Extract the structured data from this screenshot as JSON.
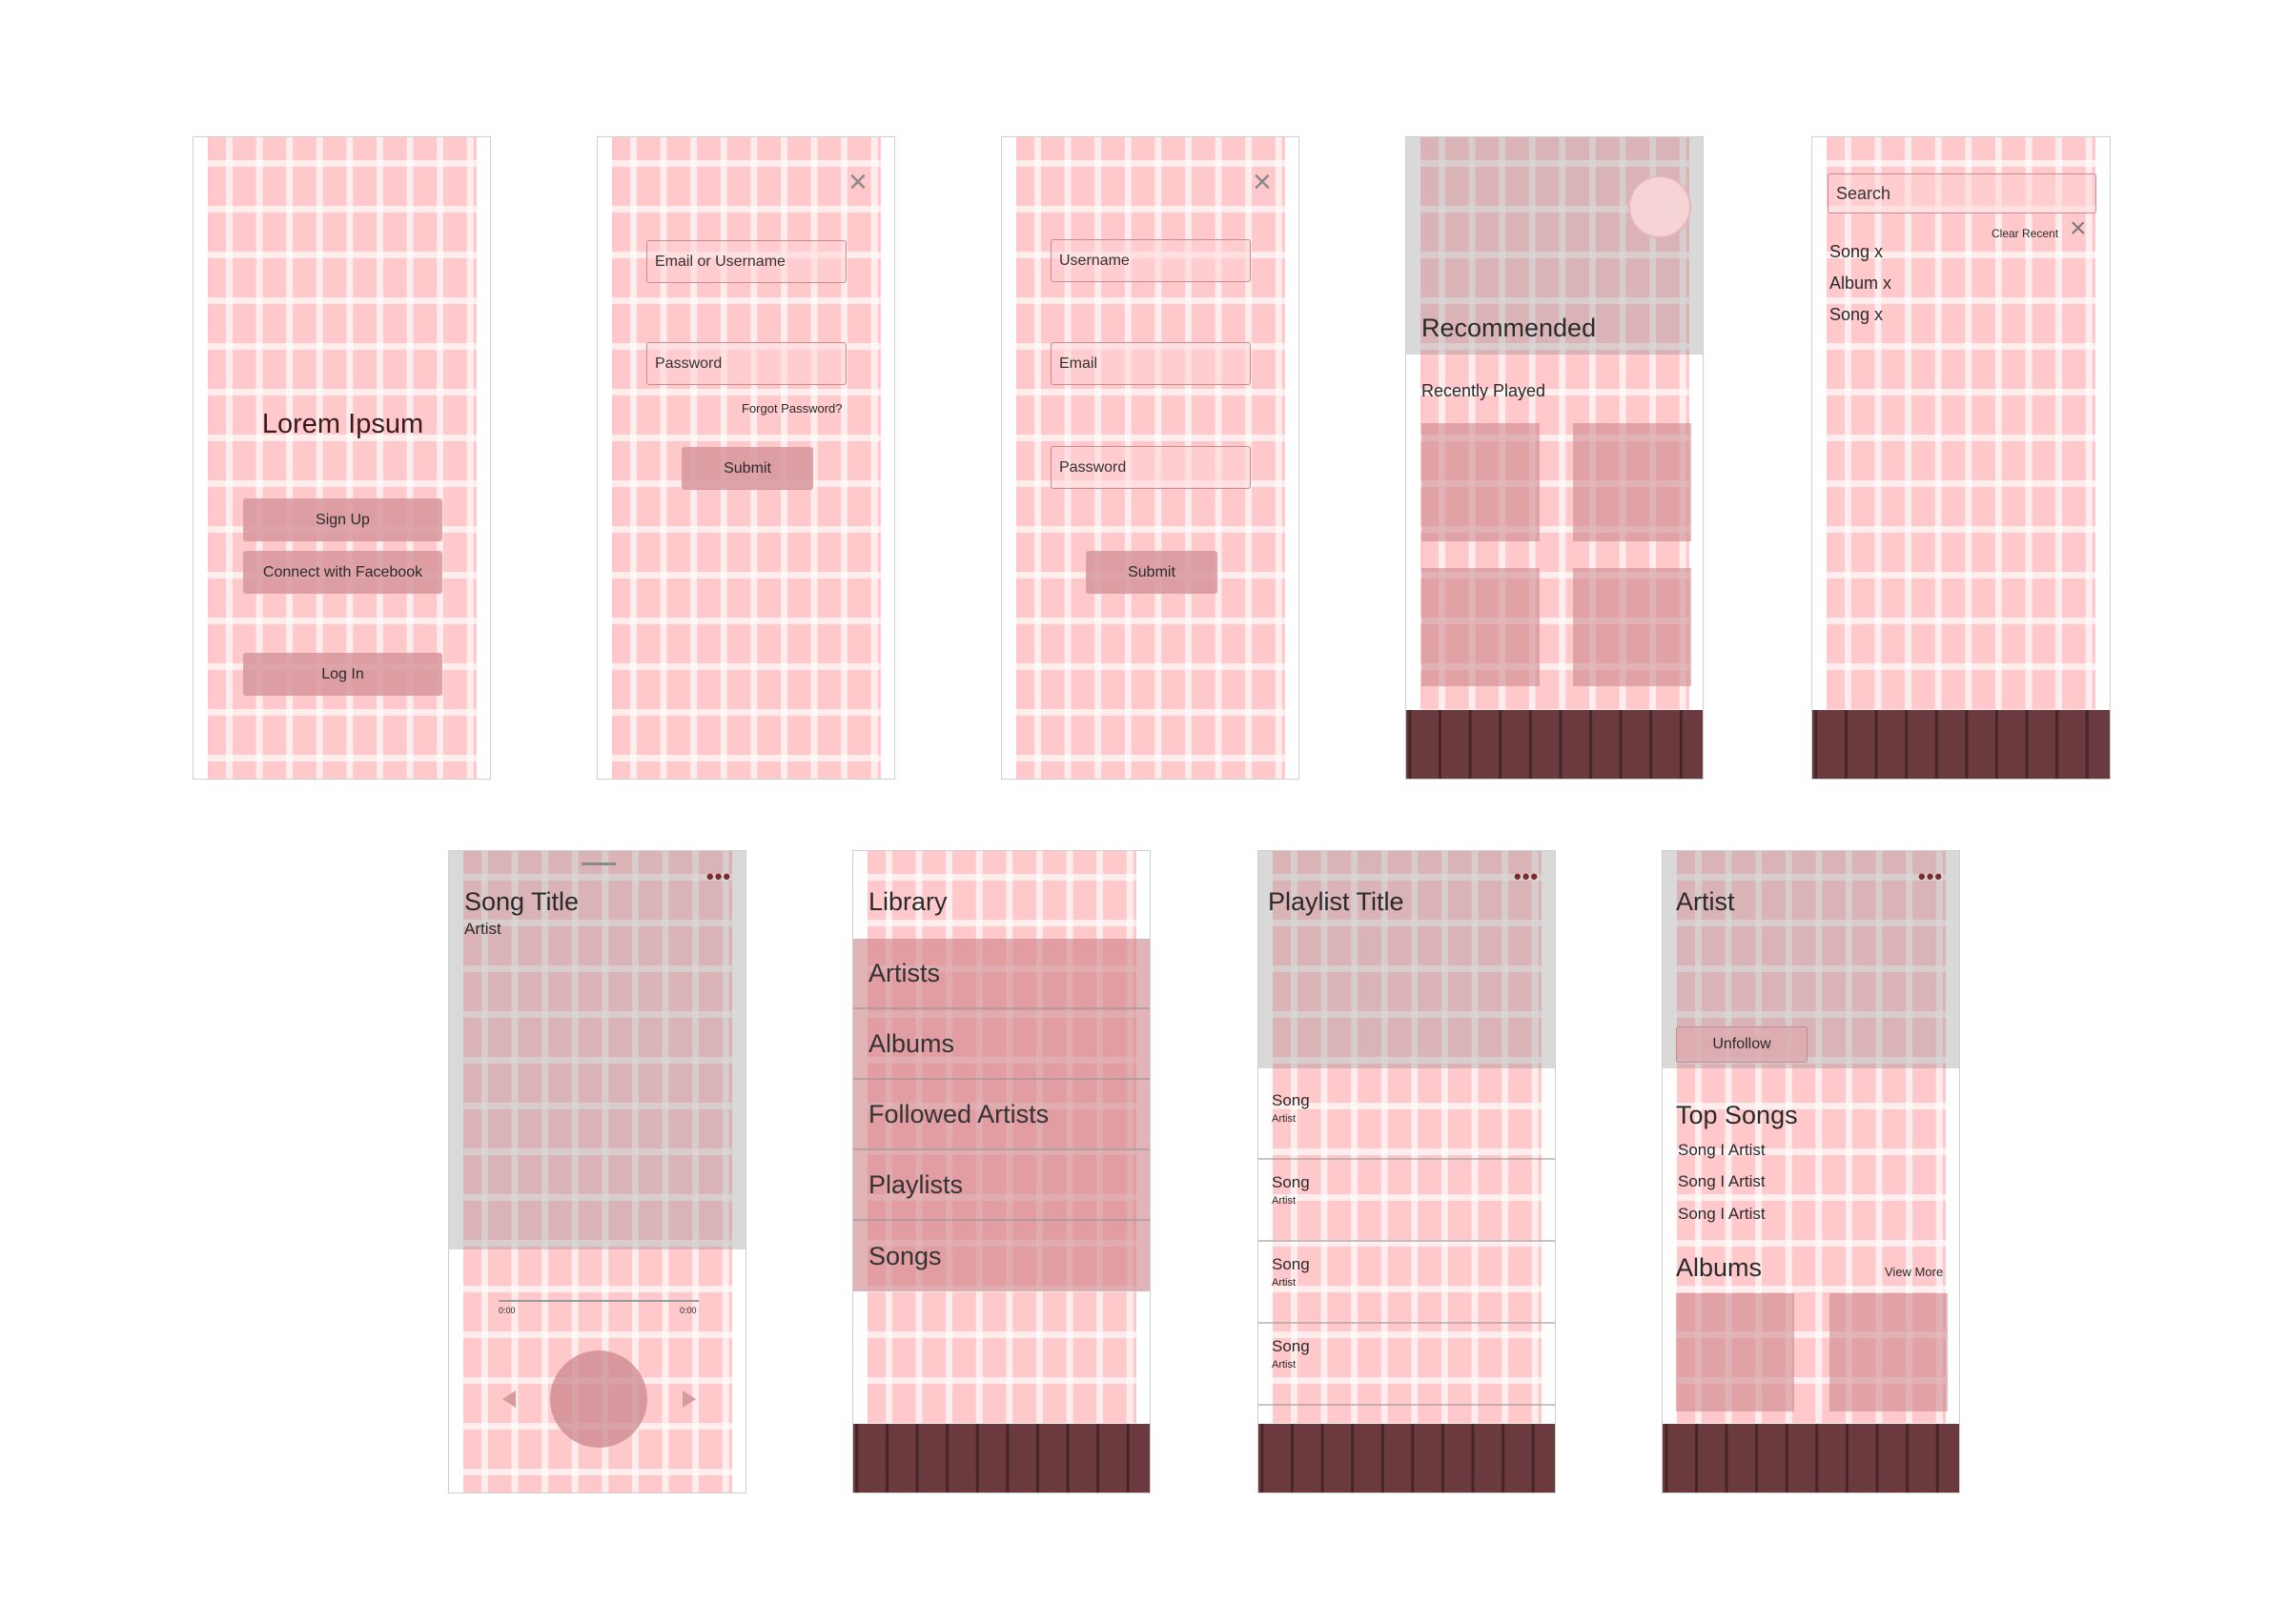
{
  "screen_login": {
    "title": "Lorem Ipsum",
    "signup_label": "Sign Up",
    "facebook_label": "Connect with Facebook",
    "login_label": "Log In"
  },
  "screen_signin": {
    "email_placeholder": "Email or Username",
    "password_placeholder": "Password",
    "forgot_label": "Forgot Password?",
    "submit_label": "Submit"
  },
  "screen_register": {
    "username_placeholder": "Username",
    "email_placeholder": "Email",
    "password_placeholder": "Password",
    "submit_label": "Submit"
  },
  "screen_home": {
    "recommended_label": "Recommended",
    "recently_played_label": "Recently Played"
  },
  "screen_search": {
    "search_placeholder": "Search",
    "clear_recent_label": "Clear Recent",
    "recent_items": [
      "Song x",
      "Album x",
      "Song x"
    ]
  },
  "screen_player": {
    "song_title": "Song Title",
    "artist": "Artist",
    "time_start": "0:00",
    "time_end": "0:00"
  },
  "screen_library": {
    "title": "Library",
    "items": [
      "Artists",
      "Albums",
      "Followed Artists",
      "Playlists",
      "Songs"
    ]
  },
  "screen_playlist": {
    "title": "Playlist Title",
    "songs": [
      {
        "song": "Song",
        "artist": "Artist"
      },
      {
        "song": "Song",
        "artist": "Artist"
      },
      {
        "song": "Song",
        "artist": "Artist"
      },
      {
        "song": "Song",
        "artist": "Artist"
      }
    ]
  },
  "screen_artist": {
    "title": "Artist",
    "unfollow_label": "Unfollow",
    "top_songs_label": "Top Songs",
    "top_songs": [
      "Song I Artist",
      "Song I Artist",
      "Song I Artist"
    ],
    "albums_label": "Albums",
    "view_more_label": "View More"
  },
  "colors": {
    "grid_pink": "#ffc9cc",
    "button": "#d7969b",
    "tabbar": "#6b3a3f"
  }
}
